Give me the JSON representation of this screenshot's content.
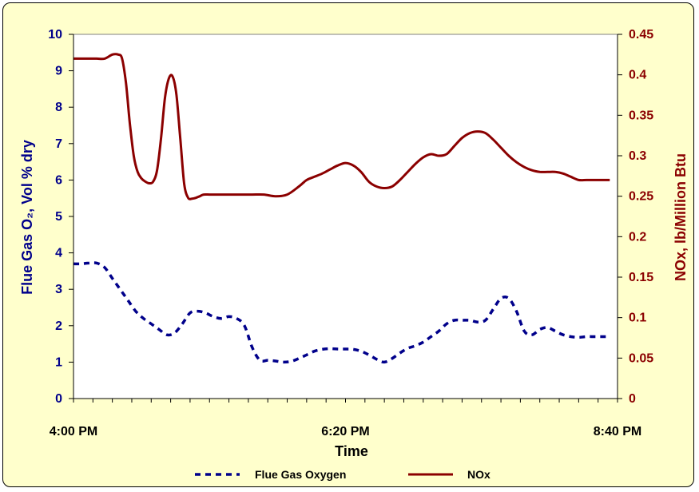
{
  "chart_data": {
    "type": "line",
    "xlabel": "Time",
    "x_tick_labels": [
      "4:00  PM",
      "6:20  PM",
      "8:40  PM"
    ],
    "x_range_minutes": [
      0,
      280
    ],
    "y_left_label": "Flue Gas O₂, Vol % dry",
    "y_left_ticks": [
      "0",
      "1",
      "2",
      "3",
      "4",
      "5",
      "6",
      "7",
      "8",
      "9",
      "10"
    ],
    "y_left_range": [
      0,
      10
    ],
    "y_right_label": "NOx, lb/Million Btu",
    "y_right_ticks": [
      "0",
      "0.05",
      "0.1",
      "0.15",
      "0.2",
      "0.25",
      "0.3",
      "0.35",
      "0.4",
      "0.45"
    ],
    "y_right_range": [
      0,
      0.45
    ],
    "grid": false,
    "legend": "bottom",
    "colors": {
      "oxygen": "#00008b",
      "nox": "#8b0000",
      "plot_bg": "#ffffff",
      "frame_bg": "#ffffcc"
    },
    "series": [
      {
        "name": "Flue Gas Oxygen",
        "axis": "left",
        "style": "dashed",
        "x": [
          0,
          4,
          8,
          12,
          16,
          20,
          24,
          28,
          32,
          36,
          40,
          44,
          48,
          52,
          56,
          60,
          64,
          68,
          72,
          76,
          80,
          84,
          88,
          92,
          96,
          100,
          104,
          108,
          112,
          116,
          120,
          124,
          128,
          132,
          136,
          140,
          144,
          148,
          152,
          156,
          160,
          164,
          168,
          172,
          176,
          180,
          184,
          188,
          192,
          196,
          200,
          204,
          208,
          212,
          216,
          220,
          224,
          228,
          232,
          236,
          240,
          244,
          248,
          252,
          256,
          260,
          264,
          268,
          272,
          276
        ],
        "y": [
          3.7,
          3.7,
          3.72,
          3.72,
          3.6,
          3.3,
          3.0,
          2.7,
          2.4,
          2.2,
          2.05,
          1.9,
          1.75,
          1.8,
          2.05,
          2.35,
          2.4,
          2.35,
          2.25,
          2.2,
          2.25,
          2.2,
          2.0,
          1.4,
          1.05,
          1.05,
          1.03,
          1.0,
          1.02,
          1.1,
          1.2,
          1.3,
          1.35,
          1.37,
          1.36,
          1.36,
          1.35,
          1.3,
          1.2,
          1.08,
          1.0,
          1.1,
          1.25,
          1.38,
          1.45,
          1.55,
          1.7,
          1.85,
          2.05,
          2.15,
          2.15,
          2.15,
          2.1,
          2.15,
          2.45,
          2.75,
          2.75,
          2.4,
          1.85,
          1.75,
          1.9,
          1.95,
          1.85,
          1.75,
          1.7,
          1.68,
          1.7,
          1.7,
          1.7,
          1.7
        ]
      },
      {
        "name": "NOx",
        "axis": "right",
        "style": "solid",
        "x": [
          0,
          4,
          8,
          12,
          16,
          20,
          23,
          25,
          27,
          29,
          31,
          33,
          35,
          37,
          39,
          41,
          43,
          45,
          47,
          49,
          51,
          53,
          55,
          57,
          59,
          61,
          63,
          65,
          67,
          70,
          73,
          76,
          80,
          86,
          92,
          98,
          104,
          110,
          116,
          120,
          124,
          128,
          132,
          136,
          140,
          144,
          148,
          152,
          156,
          160,
          164,
          168,
          172,
          176,
          180,
          184,
          188,
          192,
          196,
          200,
          204,
          208,
          212,
          216,
          220,
          224,
          228,
          232,
          236,
          240,
          244,
          248,
          252,
          256,
          260,
          264,
          268,
          272,
          276
        ],
        "y": [
          0.42,
          0.42,
          0.42,
          0.42,
          0.42,
          0.425,
          0.425,
          0.42,
          0.39,
          0.34,
          0.3,
          0.28,
          0.272,
          0.268,
          0.266,
          0.268,
          0.282,
          0.32,
          0.37,
          0.395,
          0.398,
          0.375,
          0.32,
          0.265,
          0.248,
          0.247,
          0.248,
          0.25,
          0.252,
          0.252,
          0.252,
          0.252,
          0.252,
          0.252,
          0.252,
          0.252,
          0.25,
          0.252,
          0.262,
          0.27,
          0.274,
          0.278,
          0.283,
          0.288,
          0.291,
          0.288,
          0.28,
          0.268,
          0.262,
          0.26,
          0.262,
          0.27,
          0.28,
          0.29,
          0.298,
          0.302,
          0.3,
          0.302,
          0.312,
          0.322,
          0.328,
          0.33,
          0.328,
          0.32,
          0.31,
          0.3,
          0.292,
          0.286,
          0.282,
          0.28,
          0.28,
          0.28,
          0.278,
          0.274,
          0.27,
          0.27,
          0.27,
          0.27,
          0.27
        ]
      }
    ]
  }
}
